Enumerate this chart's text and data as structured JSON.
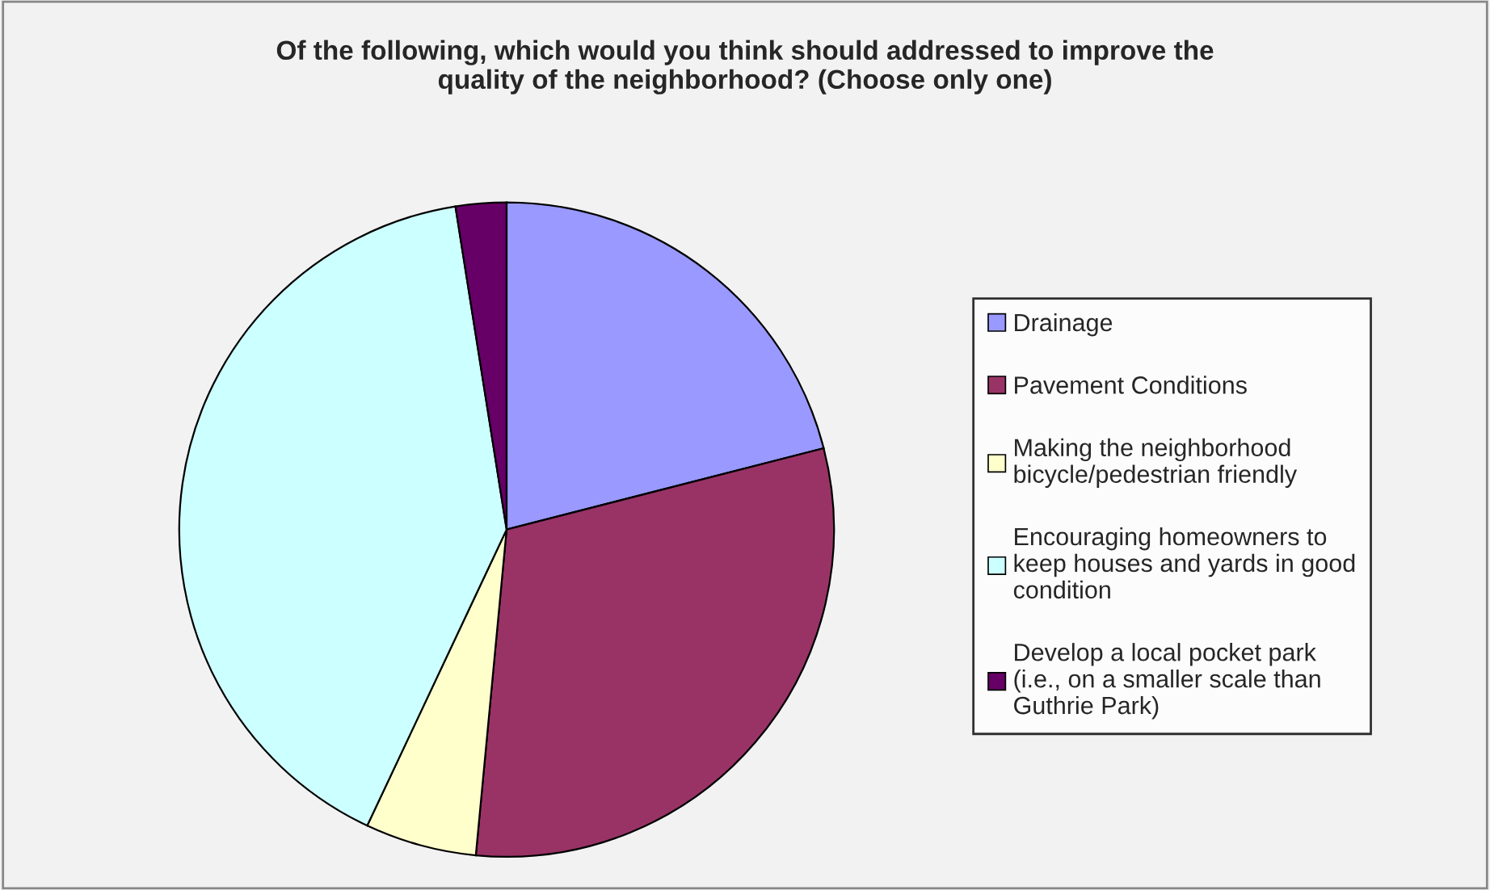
{
  "chart_data": {
    "type": "pie",
    "title": "Of the following, which would you think should addressed to improve the\nquality of the neighborhood? (Choose only one)",
    "categories": [
      "Drainage",
      "Pavement Conditions",
      "Making the neighborhood\nbicycle/pedestrian friendly",
      "Encouraging homeowners to\nkeep houses and yards in good\ncondition",
      "Develop a local pocket park\n(i.e., on a smaller scale than\nGuthrie Park)"
    ],
    "values": [
      21,
      30.5,
      5.5,
      40.5,
      2.5
    ],
    "colors": [
      "#9999ff",
      "#993366",
      "#ffffcc",
      "#ccffff",
      "#660066"
    ],
    "legend": "right"
  }
}
